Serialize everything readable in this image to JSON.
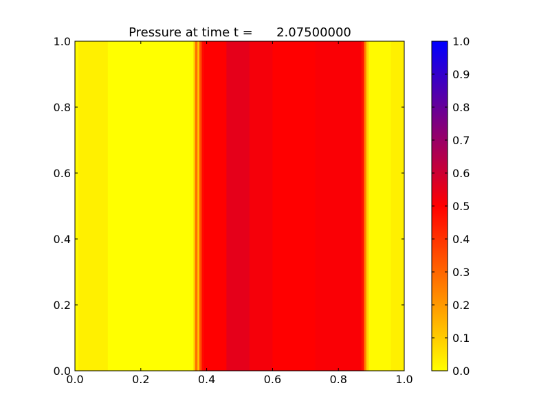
{
  "chart_data": {
    "type": "heatmap",
    "title": "Pressure at time t =      2.07500000",
    "xlabel": "",
    "ylabel": "",
    "xlim": [
      0.0,
      1.0
    ],
    "ylim": [
      0.0,
      1.0
    ],
    "x_ticks": [
      "0.0",
      "0.2",
      "0.4",
      "0.6",
      "0.8",
      "1.0"
    ],
    "y_ticks": [
      "0.0",
      "0.2",
      "0.4",
      "0.6",
      "0.8",
      "1.0"
    ],
    "colorbar": {
      "range": [
        0.0,
        1.0
      ],
      "ticks": [
        "0.0",
        "0.1",
        "0.2",
        "0.3",
        "0.4",
        "0.5",
        "0.6",
        "0.7",
        "0.8",
        "0.9",
        "1.0"
      ],
      "colormap": [
        "#ffff00",
        "#ff0000",
        "#0000ff"
      ]
    },
    "grid": false,
    "profile_along_x": [
      {
        "x0": 0.0,
        "x1": 0.01,
        "value": 0.01
      },
      {
        "x0": 0.01,
        "x1": 0.1,
        "value": 0.03
      },
      {
        "x0": 0.1,
        "x1": 0.36,
        "value": 0.0
      },
      {
        "x0": 0.36,
        "x1": 0.365,
        "value": 0.1
      },
      {
        "x0": 0.365,
        "x1": 0.372,
        "value": 0.28
      },
      {
        "x0": 0.372,
        "x1": 0.378,
        "value": 0.12
      },
      {
        "x0": 0.378,
        "x1": 0.385,
        "value": 0.35
      },
      {
        "x0": 0.385,
        "x1": 0.392,
        "value": 0.48
      },
      {
        "x0": 0.392,
        "x1": 0.46,
        "value": 0.5
      },
      {
        "x0": 0.46,
        "x1": 0.53,
        "value": 0.55
      },
      {
        "x0": 0.53,
        "x1": 0.6,
        "value": 0.52
      },
      {
        "x0": 0.6,
        "x1": 0.73,
        "value": 0.5
      },
      {
        "x0": 0.73,
        "x1": 0.87,
        "value": 0.51
      },
      {
        "x0": 0.87,
        "x1": 0.878,
        "value": 0.46
      },
      {
        "x0": 0.878,
        "x1": 0.885,
        "value": 0.25
      },
      {
        "x0": 0.885,
        "x1": 0.892,
        "value": 0.08
      },
      {
        "x0": 0.892,
        "x1": 0.96,
        "value": 0.01
      },
      {
        "x0": 0.96,
        "x1": 1.0,
        "value": 0.03
      }
    ]
  }
}
